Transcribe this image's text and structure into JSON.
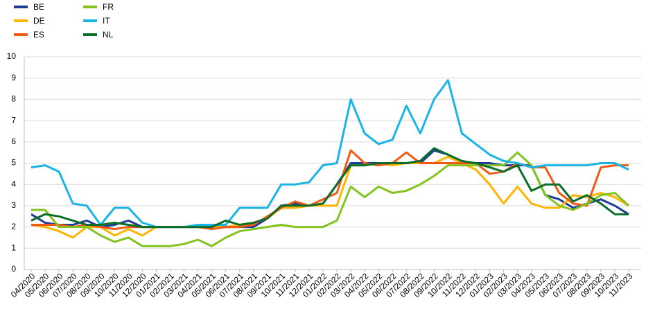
{
  "chart_data": {
    "type": "line",
    "categories": [
      "04/2020",
      "05/2020",
      "06/2020",
      "07/2020",
      "08/2020",
      "09/2020",
      "10/2020",
      "11/2020",
      "12/2020",
      "01/2021",
      "02/2021",
      "03/2021",
      "04/2021",
      "05/2021",
      "06/2021",
      "07/2021",
      "08/2021",
      "09/2021",
      "10/2021",
      "11/2021",
      "12/2021",
      "01/2022",
      "02/2022",
      "03/2022",
      "04/2022",
      "05/2022",
      "06/2022",
      "07/2022",
      "08/2022",
      "09/2022",
      "10/2022",
      "11/2022",
      "12/2022",
      "01/2023",
      "02/2023",
      "03/2023",
      "04/2023",
      "05/2023",
      "06/2023",
      "07/2023",
      "08/2023",
      "09/2023",
      "10/2023",
      "11/2023"
    ],
    "series": [
      {
        "name": "BE",
        "color": "#1f3c96",
        "values": [
          2.6,
          2.2,
          2.1,
          2.1,
          2.3,
          2.0,
          2.1,
          2.3,
          2.0,
          2.0,
          2.0,
          2.0,
          2.0,
          2.0,
          2.0,
          2.0,
          2.0,
          2.4,
          3.0,
          3.1,
          3.0,
          3.1,
          4.0,
          5.0,
          5.0,
          5.0,
          5.0,
          5.0,
          5.0,
          5.6,
          5.4,
          5.0,
          5.0,
          5.0,
          4.9,
          4.9,
          4.9,
          3.5,
          3.3,
          2.9,
          3.1,
          3.3,
          3.0,
          2.6
        ]
      },
      {
        "name": "DE",
        "color": "#ffb400",
        "values": [
          2.1,
          2.0,
          1.8,
          1.5,
          2.0,
          2.0,
          1.6,
          1.9,
          1.6,
          2.0,
          2.0,
          2.0,
          2.0,
          2.0,
          2.0,
          2.1,
          2.2,
          2.4,
          2.9,
          2.9,
          3.0,
          3.0,
          3.0,
          4.9,
          4.9,
          5.0,
          4.9,
          5.0,
          5.0,
          5.0,
          5.3,
          5.0,
          4.7,
          4.0,
          3.1,
          3.9,
          3.1,
          2.9,
          2.9,
          3.5,
          3.4,
          3.6,
          3.4,
          3.0
        ]
      },
      {
        "name": "ES",
        "color": "#f05a14",
        "values": [
          2.1,
          2.1,
          2.1,
          2.0,
          2.1,
          2.0,
          1.9,
          2.0,
          2.0,
          2.0,
          2.0,
          2.0,
          2.0,
          1.9,
          2.0,
          2.0,
          2.1,
          2.5,
          2.9,
          3.2,
          3.0,
          3.3,
          3.6,
          5.6,
          5.0,
          4.9,
          5.0,
          5.5,
          5.0,
          5.0,
          5.0,
          5.0,
          5.0,
          4.5,
          4.6,
          5.0,
          4.8,
          4.8,
          3.6,
          3.1,
          3.0,
          4.8,
          4.9,
          4.9
        ]
      },
      {
        "name": "FR",
        "color": "#82c31e",
        "values": [
          2.8,
          2.8,
          2.0,
          2.0,
          2.0,
          1.6,
          1.3,
          1.5,
          1.1,
          1.1,
          1.1,
          1.2,
          1.4,
          1.1,
          1.5,
          1.8,
          1.9,
          2.0,
          2.1,
          2.0,
          2.0,
          2.0,
          2.3,
          3.9,
          3.4,
          3.9,
          3.6,
          3.7,
          4.0,
          4.4,
          4.9,
          4.9,
          4.9,
          4.9,
          4.9,
          5.5,
          4.9,
          3.5,
          3.0,
          2.8,
          3.1,
          3.5,
          3.6,
          3.0
        ]
      },
      {
        "name": "IT",
        "color": "#19b4e6",
        "values": [
          4.8,
          4.9,
          4.6,
          3.1,
          3.0,
          2.1,
          2.9,
          2.9,
          2.2,
          2.0,
          2.0,
          2.0,
          2.1,
          2.1,
          2.1,
          2.9,
          2.9,
          2.9,
          4.0,
          4.0,
          4.1,
          4.9,
          5.0,
          8.0,
          6.4,
          5.9,
          6.1,
          7.7,
          6.4,
          8.0,
          8.9,
          6.4,
          5.9,
          5.4,
          5.1,
          5.0,
          4.8,
          4.9,
          4.9,
          4.9,
          4.9,
          5.0,
          5.0,
          4.7
        ]
      },
      {
        "name": "NL",
        "color": "#0a6e28",
        "values": [
          2.3,
          2.6,
          2.5,
          2.3,
          2.1,
          2.1,
          2.2,
          2.1,
          2.0,
          2.0,
          2.0,
          2.0,
          2.0,
          2.0,
          2.3,
          2.1,
          2.2,
          2.4,
          3.0,
          3.0,
          3.0,
          3.1,
          4.0,
          4.9,
          4.9,
          5.0,
          5.0,
          5.0,
          5.1,
          5.7,
          5.4,
          5.1,
          5.0,
          4.8,
          4.6,
          4.9,
          3.7,
          4.0,
          4.0,
          3.2,
          3.5,
          3.1,
          2.6,
          2.6
        ]
      }
    ],
    "ylim": [
      0,
      10
    ],
    "yticks": [
      0,
      1,
      2,
      3,
      4,
      5,
      6,
      7,
      8,
      9,
      10
    ],
    "grid": true
  }
}
